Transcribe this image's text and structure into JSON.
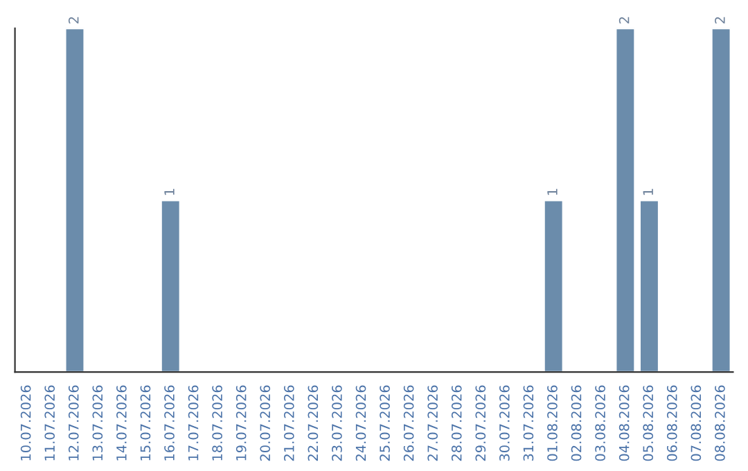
{
  "chart_data": {
    "type": "bar",
    "categories": [
      "10.07.2026",
      "11.07.2026",
      "12.07.2026",
      "13.07.2026",
      "14.07.2026",
      "15.07.2026",
      "16.07.2026",
      "17.07.2026",
      "18.07.2026",
      "19.07.2026",
      "20.07.2026",
      "21.07.2026",
      "22.07.2026",
      "23.07.2026",
      "24.07.2026",
      "25.07.2026",
      "26.07.2026",
      "27.07.2026",
      "28.07.2026",
      "29.07.2026",
      "30.07.2026",
      "31.07.2026",
      "01.08.2026",
      "02.08.2026",
      "03.08.2026",
      "04.08.2026",
      "05.08.2026",
      "06.08.2026",
      "07.08.2026",
      "08.08.2026"
    ],
    "values": [
      null,
      null,
      2,
      null,
      null,
      null,
      1,
      null,
      null,
      null,
      null,
      null,
      null,
      null,
      null,
      null,
      null,
      null,
      null,
      null,
      null,
      null,
      1,
      null,
      null,
      2,
      1,
      null,
      null,
      2
    ],
    "value_labels": [
      null,
      null,
      "2",
      null,
      null,
      null,
      "1",
      null,
      null,
      null,
      null,
      null,
      null,
      null,
      null,
      null,
      null,
      null,
      null,
      null,
      null,
      null,
      "1",
      null,
      null,
      "2",
      "1",
      null,
      null,
      "2"
    ],
    "color": "#6b8cab",
    "grid": false,
    "legend": false,
    "tick_labels": "x"
  }
}
